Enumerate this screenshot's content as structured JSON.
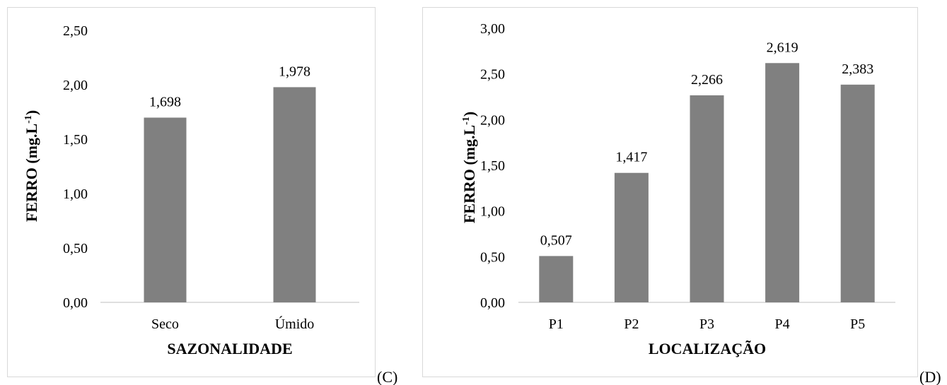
{
  "chart_data": [
    {
      "type": "bar",
      "panel_label": "(C)",
      "categories": [
        "Seco",
        "Úmido"
      ],
      "values": [
        1.698,
        1.978
      ],
      "value_labels": [
        "1,698",
        "1,978"
      ],
      "xlabel": "SAZONALIDADE",
      "ylabel_main": "FERRO (mg.L",
      "ylabel_sup": "-1",
      "ylabel_end": ")",
      "ylim": [
        0,
        2.5
      ],
      "yticks": [
        0,
        0.5,
        1.0,
        1.5,
        2.0,
        2.5
      ],
      "ytick_labels": [
        "0,00",
        "0,50",
        "1,00",
        "1,50",
        "2,00",
        "2,50"
      ],
      "bar_color": "#808080",
      "grid": false
    },
    {
      "type": "bar",
      "panel_label": "(D)",
      "categories": [
        "P1",
        "P2",
        "P3",
        "P4",
        "P5"
      ],
      "values": [
        0.507,
        1.417,
        2.266,
        2.619,
        2.383
      ],
      "value_labels": [
        "0,507",
        "1,417",
        "2,266",
        "2,619",
        "2,383"
      ],
      "xlabel": "LOCALIZAÇÃO",
      "ylabel_main": "FERRO (mg.L",
      "ylabel_sup": "-1",
      "ylabel_end": ")",
      "ylim": [
        0,
        3.0
      ],
      "yticks": [
        0,
        0.5,
        1.0,
        1.5,
        2.0,
        2.5,
        3.0
      ],
      "ytick_labels": [
        "0,00",
        "0,50",
        "1,00",
        "1,50",
        "2,00",
        "2,50",
        "3,00"
      ],
      "bar_color": "#808080",
      "grid": false
    }
  ]
}
